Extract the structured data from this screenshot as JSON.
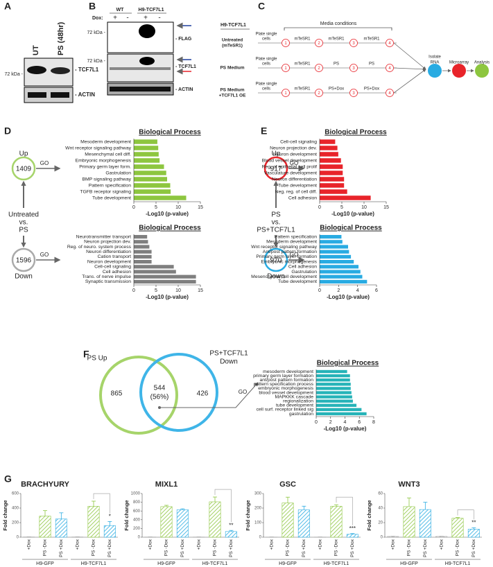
{
  "panel_labels": [
    "A",
    "B",
    "C",
    "D",
    "E",
    "F",
    "G"
  ],
  "panel_a": {
    "lanes": [
      "UT",
      "PS (48hr)"
    ],
    "marker": "72 kDa -",
    "bands": [
      "- TCF7L1",
      "- ACTIN"
    ]
  },
  "panel_b": {
    "groups": [
      "WT",
      "H9-TCF7L1"
    ],
    "dox_label": "Dox:",
    "dox": [
      "+",
      "-",
      "+",
      "-"
    ],
    "markers": [
      "72 kDa -",
      "72 kDa -"
    ],
    "bands": [
      "- FLAG",
      "- TCF7L1",
      "- ACTIN"
    ]
  },
  "panel_c": {
    "cell_line": "H9-TCF7L1",
    "media_header": "Media conditions",
    "rows": [
      {
        "label": [
          "Untreated",
          "(mTeSR1)"
        ],
        "plate": [
          "Plate single",
          "cells"
        ],
        "steps": [
          1,
          2,
          3,
          4
        ],
        "media": [
          "mTeSR1",
          "mTeSR1",
          "mTeSR1"
        ]
      },
      {
        "label": [
          "PS Medium"
        ],
        "plate": [
          "Plate single",
          "cells"
        ],
        "steps": [
          1,
          2,
          3,
          4
        ],
        "media": [
          "mTeSR1",
          "PS",
          "PS"
        ]
      },
      {
        "label": [
          "PS Medium",
          "+TCF7L1 OE"
        ],
        "plate": [
          "Plate single",
          "cells"
        ],
        "steps": [
          1,
          2,
          3,
          4
        ],
        "media": [
          "mTeSR1",
          "PS+Dox",
          "PS+Dox"
        ]
      }
    ],
    "outputs": [
      [
        "Isolate",
        "RNA"
      ],
      [
        "Microarray"
      ],
      [
        "Analysis"
      ]
    ]
  },
  "panel_d": {
    "up_label": "Up",
    "up_count": 1409,
    "go": [
      "GO",
      "GO"
    ],
    "comparison": [
      "Untreated",
      "vs.",
      "PS"
    ],
    "down_count": 1596,
    "down_label": "Down"
  },
  "panel_e": {
    "up_label": "Up",
    "up_count": 917,
    "go": [
      "GO",
      "GO"
    ],
    "comparison": [
      "PS",
      "vs.",
      "PS+TCF7L1"
    ],
    "down_count": 970,
    "down_label": "Down"
  },
  "panel_f": {
    "set_a": "PS Up",
    "set_b": [
      "PS+TCF7L1",
      "Down"
    ],
    "only_a": 865,
    "overlap": 544,
    "overlap_pct": "(56%)",
    "only_b": 426,
    "go": "GO"
  },
  "chart_data": [
    {
      "type": "barh",
      "title": "Biological Process",
      "xlabel": "-Log10 (p-value)",
      "categories": [
        "Mesoderm development",
        "Wnt receptor signaling pathway",
        "Mesenchymal cell diff.",
        "Embryonic morphogenesis",
        "Primary germ layer form.",
        "Gastrulation",
        "BMP signaling pathway",
        "Pattern specification",
        "TGFB receptor signaling",
        "Tube development"
      ],
      "values": [
        5.3,
        5.5,
        5.6,
        5.8,
        6.8,
        7.3,
        7.5,
        8.2,
        8.3,
        11.8
      ],
      "color": "#8dc63f",
      "xlim": [
        0,
        15
      ],
      "xticks": [
        0,
        5,
        10,
        15
      ]
    },
    {
      "type": "barh",
      "title": "Biological Process",
      "xlabel": "-Log10 (p-value)",
      "categories": [
        "Neurotransmitter transport",
        "Neuron projection dev.",
        "Reg. of neuro. system process",
        "Neuron differentiation",
        "Cation transport",
        "Neuron development",
        "Cell-cell signaling",
        "Cell adhesion",
        "Trans. of nerve impulse",
        "Synaptic transmission"
      ],
      "values": [
        3,
        3.2,
        3.5,
        4,
        4,
        4,
        9,
        9.5,
        14,
        14
      ],
      "color": "#7f7f7f",
      "xlim": [
        0,
        15
      ],
      "xticks": [
        0,
        5,
        10,
        15
      ]
    },
    {
      "type": "barh",
      "title": "Biological Process",
      "xlabel": "-Log10 (p-value)",
      "categories": [
        "Cell-cell signaling",
        "Neuron projection dev.",
        "Neuron development",
        "Blood vessel development",
        "Reg. of epithelial cell prolif",
        "Vasculature development",
        "Neuron differentiation",
        "Tube development",
        "Neg. reg. of cell diff.",
        "Cell adhesion"
      ],
      "values": [
        3.5,
        4,
        4.2,
        4.8,
        5.2,
        5.2,
        5.5,
        5.5,
        6.2,
        11.5
      ],
      "color": "#e8242a",
      "xlim": [
        0,
        15
      ],
      "xticks": [
        0,
        5,
        10,
        15
      ]
    },
    {
      "type": "barh",
      "title": "Biological Process",
      "xlabel": "-Log10 (p-value)",
      "categories": [
        "Pattern specification",
        "Mesoderm development",
        "Wnt receptor signaling pathway",
        "Ant/post pattern formation",
        "Primary germ layer formation",
        "Embryonic morphogenesis",
        "Cell adhesion",
        "Gastrulation",
        "Mesenchymal cell development",
        "Tube development"
      ],
      "values": [
        2.3,
        2.4,
        3,
        3.1,
        3.3,
        3.6,
        4.1,
        4.3,
        4.5,
        5
      ],
      "color": "#29abe2",
      "xlim": [
        0,
        6
      ],
      "xticks": [
        0,
        2,
        4,
        6
      ]
    },
    {
      "type": "barh",
      "title": "Biological Process",
      "xlabel": "-Log10 (p-value)",
      "categories": [
        "mesoderm development",
        "primary germ layer formation",
        "ant/post pattern formation",
        "pattern specification process",
        "embryonic morphogenesis",
        "blood vessel development",
        "MAPKKK cascade",
        "regionalization",
        "tube development",
        "cell surf. receptor linked sig",
        "gastrulation"
      ],
      "values": [
        4.3,
        4.7,
        4.7,
        4.8,
        4.8,
        4.9,
        5,
        5.1,
        5.6,
        6.3,
        7
      ],
      "color": "#26b3b8",
      "xlim": [
        0,
        8
      ],
      "xticks": [
        0,
        2,
        4,
        6,
        8
      ]
    },
    {
      "type": "bar",
      "title": "BRACHYURY",
      "ylabel": "Fold change",
      "categories": [
        "+Dox",
        "PS -Dox",
        "PS +Dox",
        "+Dox",
        "PS -Dox",
        "PS +Dox"
      ],
      "groups": [
        "H9-GFP",
        "H9-TCF7L1"
      ],
      "values": [
        3,
        290,
        250,
        3,
        425,
        160
      ],
      "errors": [
        1,
        75,
        85,
        1,
        70,
        55
      ],
      "colors": [
        "#9e9e9e",
        "#8dc63f",
        "#29abe2",
        "#9e9e9e",
        "#8dc63f",
        "#29abe2"
      ],
      "hatch": true,
      "ylim": [
        0,
        600
      ],
      "yticks": [
        0,
        200,
        400,
        600
      ],
      "annotation": "*"
    },
    {
      "type": "bar",
      "title": "MIXL1",
      "ylabel": "Fold change",
      "categories": [
        "+Dox",
        "PS -Dox",
        "PS +Dox",
        "+Dox",
        "PS -Dox",
        "PS +Dox"
      ],
      "groups": [
        "H9-GFP",
        "H9-TCF7L1"
      ],
      "values": [
        4,
        700,
        630,
        4,
        810,
        130
      ],
      "errors": [
        1,
        30,
        20,
        1,
        110,
        25
      ],
      "colors": [
        "#9e9e9e",
        "#8dc63f",
        "#29abe2",
        "#9e9e9e",
        "#8dc63f",
        "#29abe2"
      ],
      "hatch": true,
      "ylim": [
        0,
        1000
      ],
      "yticks": [
        0,
        200,
        400,
        600,
        800,
        1000
      ],
      "annotation": "**"
    },
    {
      "type": "bar",
      "title": "GSC",
      "ylabel": "Fold change",
      "categories": [
        "+Dox",
        "PS -Dox",
        "PS +Dox",
        "+Dox",
        "PS -Dox",
        "PS +Dox"
      ],
      "groups": [
        "H9-GFP",
        "H9-TCF7L1"
      ],
      "values": [
        1,
        235,
        188,
        1,
        213,
        20
      ],
      "errors": [
        0.5,
        40,
        25,
        0.5,
        10,
        5
      ],
      "colors": [
        "#9e9e9e",
        "#8dc63f",
        "#29abe2",
        "#9e9e9e",
        "#8dc63f",
        "#29abe2"
      ],
      "hatch": true,
      "ylim": [
        0,
        300
      ],
      "yticks": [
        0,
        100,
        200,
        300
      ],
      "annotation": "***"
    },
    {
      "type": "bar",
      "title": "WNT3",
      "ylabel": "Fold change",
      "categories": [
        "+Dox",
        "PS -Dox",
        "PS +Dox",
        "+Dox",
        "PS -Dox",
        "PS +Dox"
      ],
      "groups": [
        "H9-GFP",
        "H9-TCF7L1"
      ],
      "values": [
        1,
        42,
        38,
        1,
        26,
        11
      ],
      "errors": [
        0.2,
        12,
        10,
        0.2,
        1,
        2
      ],
      "colors": [
        "#9e9e9e",
        "#8dc63f",
        "#29abe2",
        "#9e9e9e",
        "#8dc63f",
        "#29abe2"
      ],
      "hatch": true,
      "ylim": [
        0,
        60
      ],
      "yticks": [
        0,
        20,
        40,
        60
      ],
      "annotation": "**"
    }
  ]
}
